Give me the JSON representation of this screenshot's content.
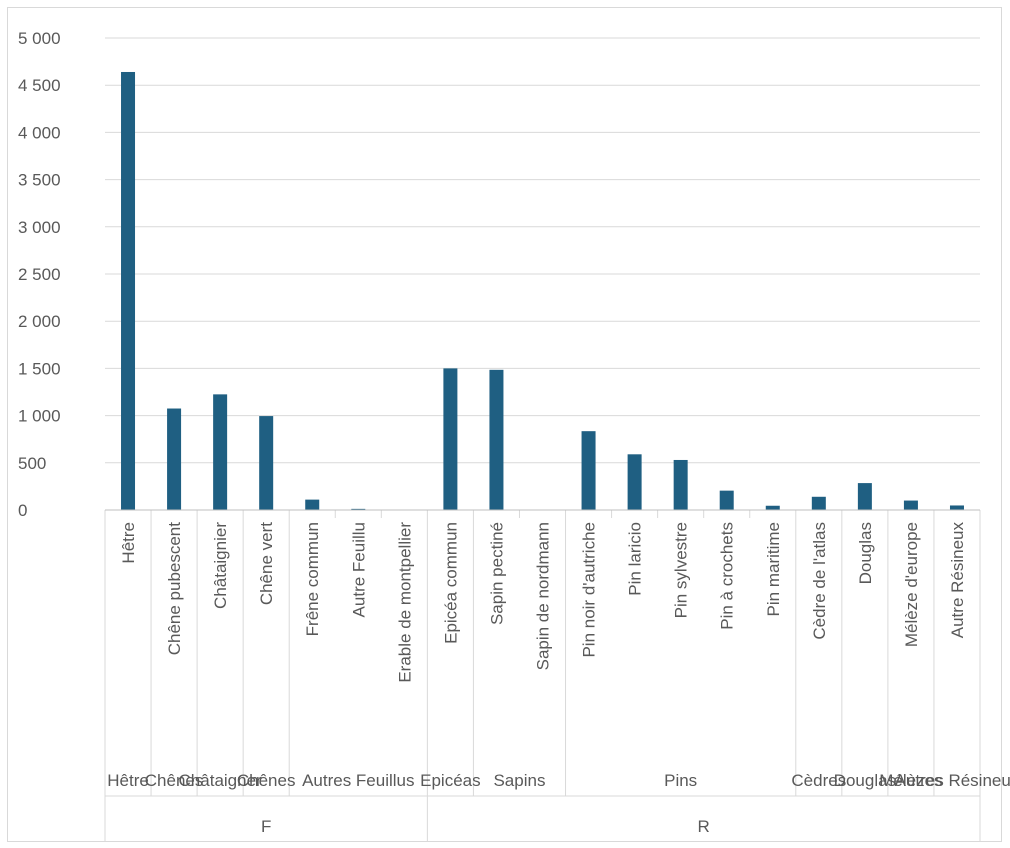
{
  "chart_data": {
    "type": "bar",
    "ylim": [
      0,
      5000
    ],
    "yticks": [
      0,
      500,
      1000,
      1500,
      2000,
      2500,
      3000,
      3500,
      4000,
      4500,
      5000
    ],
    "ytick_labels": [
      "0",
      "500",
      "1 000",
      "1 500",
      "2 000",
      "2 500",
      "3 000",
      "3 500",
      "4 000",
      "4 500",
      "5 000"
    ],
    "grid": true,
    "bar_color": "#1f5f82",
    "categories": [
      "Hêtre",
      "Chêne pubescent",
      "Châtaignier",
      "Chêne vert",
      "Frêne commun",
      "Autre Feuillu",
      "Erable de montpellier",
      "Epicéa commun",
      "Sapin pectiné",
      "Sapin de nordmann",
      "Pin noir d'autriche",
      "Pin laricio",
      "Pin sylvestre",
      "Pin à crochets",
      "Pin maritime",
      "Cèdre de l'atlas",
      "Douglas",
      "Mélèze d'europe",
      "Autre Résineux"
    ],
    "values": [
      4640,
      1075,
      1225,
      995,
      110,
      12,
      0,
      1500,
      1485,
      0,
      835,
      590,
      530,
      205,
      45,
      140,
      285,
      100,
      48
    ],
    "groups": [
      {
        "label": "Hêtre",
        "start": 0,
        "end": 0
      },
      {
        "label": "Chênes",
        "start": 1,
        "end": 1
      },
      {
        "label": "Châtaigner",
        "start": 2,
        "end": 2
      },
      {
        "label": "Chênes",
        "start": 3,
        "end": 3
      },
      {
        "label": "Autres Feuillus",
        "start": 4,
        "end": 6
      },
      {
        "label": "Epicéas",
        "start": 7,
        "end": 7
      },
      {
        "label": "Sapins",
        "start": 8,
        "end": 9
      },
      {
        "label": "Pins",
        "start": 10,
        "end": 14
      },
      {
        "label": "Cèdres",
        "start": 15,
        "end": 15
      },
      {
        "label": "Douglas",
        "start": 16,
        "end": 16
      },
      {
        "label": "Mélèzes",
        "start": 17,
        "end": 17
      },
      {
        "label": "Autres Résineux",
        "start": 18,
        "end": 18
      }
    ],
    "supergroups": [
      {
        "label": "F",
        "start": 0,
        "end": 6
      },
      {
        "label": "R",
        "start": 7,
        "end": 18
      }
    ]
  }
}
